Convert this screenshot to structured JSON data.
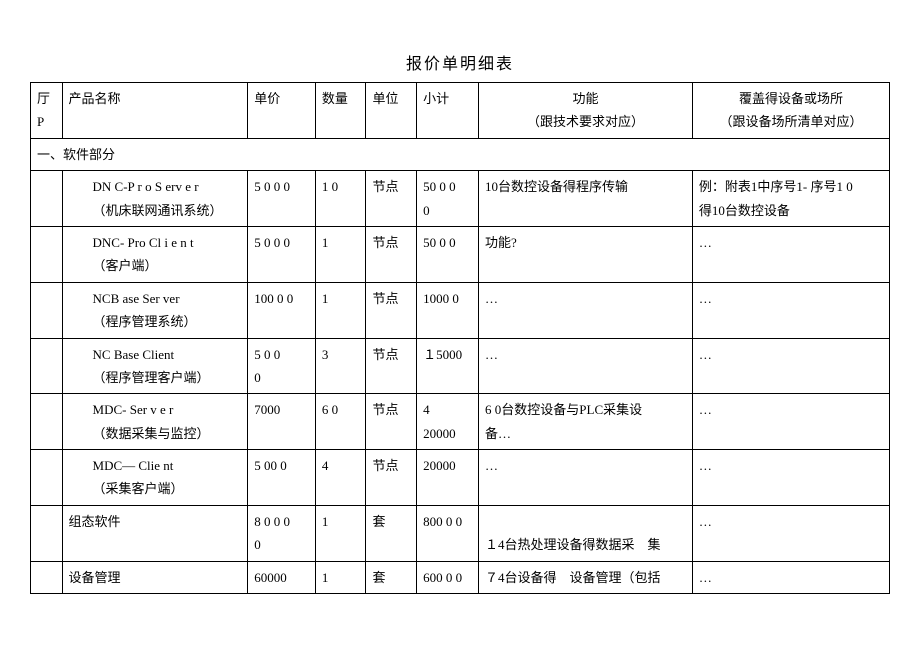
{
  "title": "报价单明细表",
  "headers": {
    "col0": "厅P",
    "col1": "产品名称",
    "col2": "单价",
    "col3": "数量",
    "col4": "单位",
    "col5": "小计",
    "col6_line1": "功能",
    "col6_line2": "（跟技术要求对应）",
    "col7_line1": "覆盖得设备或场所",
    "col7_line2": "（跟设备场所清单对应）"
  },
  "section1": "一、软件部分",
  "rows": [
    {
      "name_line1": "DN C-P r o S erv e r",
      "name_line2": "（机床联网通讯系统）",
      "price": "5 0 0 0",
      "qty": "1 0",
      "unit": "节点",
      "subtotal_line1": "50 0 0",
      "subtotal_line2": "0",
      "func": "10台数控设备得程序传输",
      "cover_line1": "例：附表1中序号1- 序号1 0",
      "cover_line2": "得10台数控设备"
    },
    {
      "name_line1": "DNC- Pro Cl i e n t",
      "name_line2": "（客户端）",
      "price": "5 0 0 0",
      "qty": "1",
      "unit": "节点",
      "subtotal": "50 0 0",
      "func": "功能?",
      "cover": "…"
    },
    {
      "name_line1": "NCB ase Ser ver",
      "name_line2": "（程序管理系统）",
      "price": "100 0 0",
      "qty": "1",
      "unit": "节点",
      "subtotal": "1000 0",
      "func": "…",
      "cover": "…"
    },
    {
      "name_line1": "NC Base Client",
      "name_line2": "（程序管理客户端）",
      "price_line1": "5 0 0",
      "price_line2": "0",
      "qty": "3",
      "unit": "节点",
      "subtotal": "１5000",
      "func": "…",
      "cover": "…"
    },
    {
      "name_line1": "MDC- Ser v e r",
      "name_line2": "（数据采集与监控）",
      "price": "7000",
      "qty": "6 0",
      "unit": "节点",
      "subtotal_line1": "4",
      "subtotal_line2": "20000",
      "func_line1": "6 0台数控设备与PLC采集设",
      "func_line2": "备…",
      "cover": "…"
    },
    {
      "name_line1": "MDC— Clie nt",
      "name_line2": "（采集客户端）",
      "price": "5 00 0",
      "qty": "4",
      "unit": "节点",
      "subtotal": "20000",
      "func": "…",
      "cover": "…"
    },
    {
      "name": "组态软件",
      "price_line1": "8 0 0 0",
      "price_line2": "0",
      "qty": "1",
      "unit": "套",
      "subtotal": "800 0 0",
      "func_line1": "",
      "func_line2": "１4台热处理设备得数据采　集",
      "cover": "…"
    },
    {
      "name": "设备管理",
      "price": "60000",
      "qty": "1",
      "unit": "套",
      "subtotal": "600 0 0",
      "func": "７4台设备得　设备管理（包括",
      "cover": "…"
    }
  ]
}
